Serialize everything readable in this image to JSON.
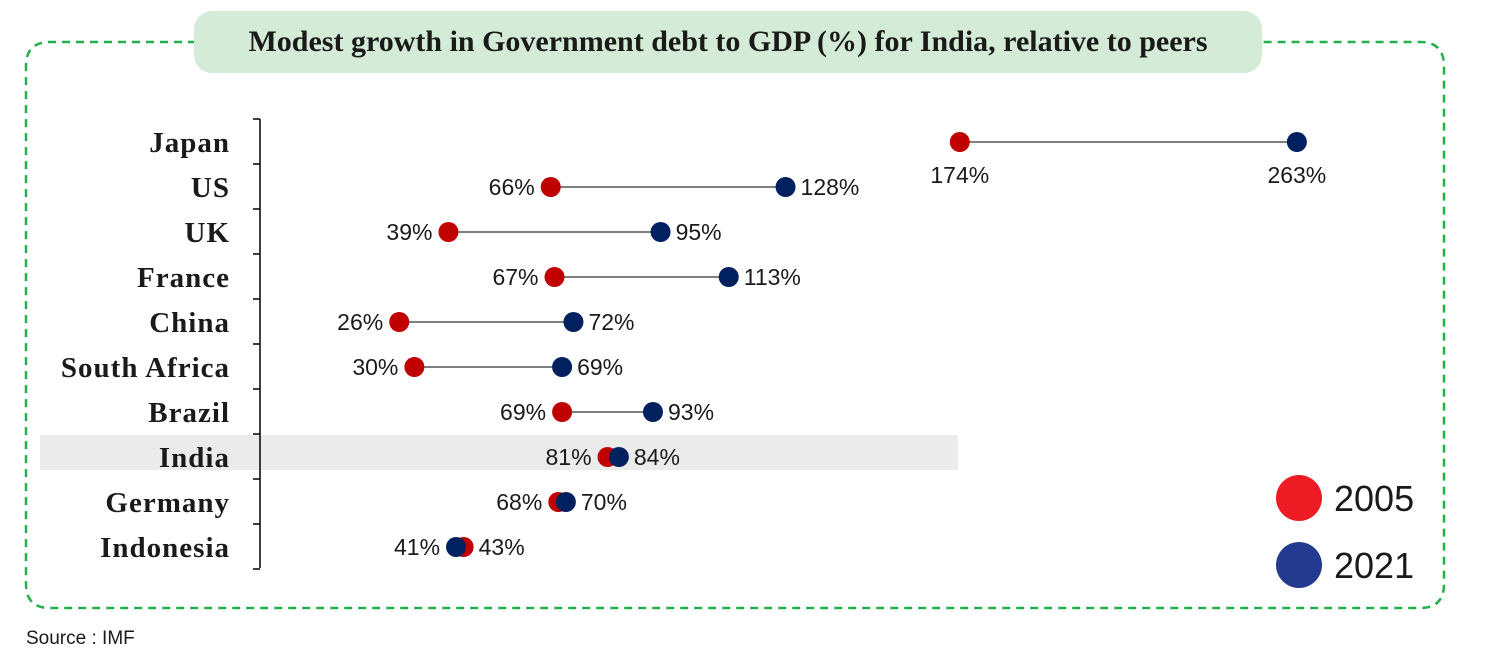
{
  "title": "Modest growth in Government debt to GDP (%) for India, relative to peers",
  "source": "Source : IMF",
  "colors": {
    "y2005": "#c00000",
    "y2021": "#002060",
    "legend_2005": "#ed1c24",
    "legend_2021": "#233a8f",
    "border": "#22b14c",
    "title_bg": "#d4ecd7",
    "highlight_bg": "#ebebeb"
  },
  "chart_data": {
    "type": "dumbbell",
    "title": "Modest growth in Government debt to GDP (%) for India, relative to peers",
    "highlight": "India",
    "categories": [
      "Japan",
      "US",
      "UK",
      "France",
      "China",
      "South Africa",
      "Brazil",
      "India",
      "Germany",
      "Indonesia"
    ],
    "series": [
      {
        "name": "2005",
        "values": [
          174,
          66,
          39,
          67,
          26,
          30,
          69,
          81,
          68,
          43
        ]
      },
      {
        "name": "2021",
        "values": [
          263,
          128,
          95,
          113,
          72,
          69,
          93,
          84,
          70,
          41
        ]
      }
    ],
    "labels_2005": [
      "174%",
      "66%",
      "39%",
      "67%",
      "26%",
      "30%",
      "69%",
      "81%",
      "68%",
      "43%"
    ],
    "labels_2021": [
      "263%",
      "128%",
      "95%",
      "113%",
      "72%",
      "69%",
      "93%",
      "84%",
      "70%",
      "41%"
    ],
    "legend": [
      "2005",
      "2021"
    ],
    "legend_position": "bottom-right",
    "grid": false
  }
}
